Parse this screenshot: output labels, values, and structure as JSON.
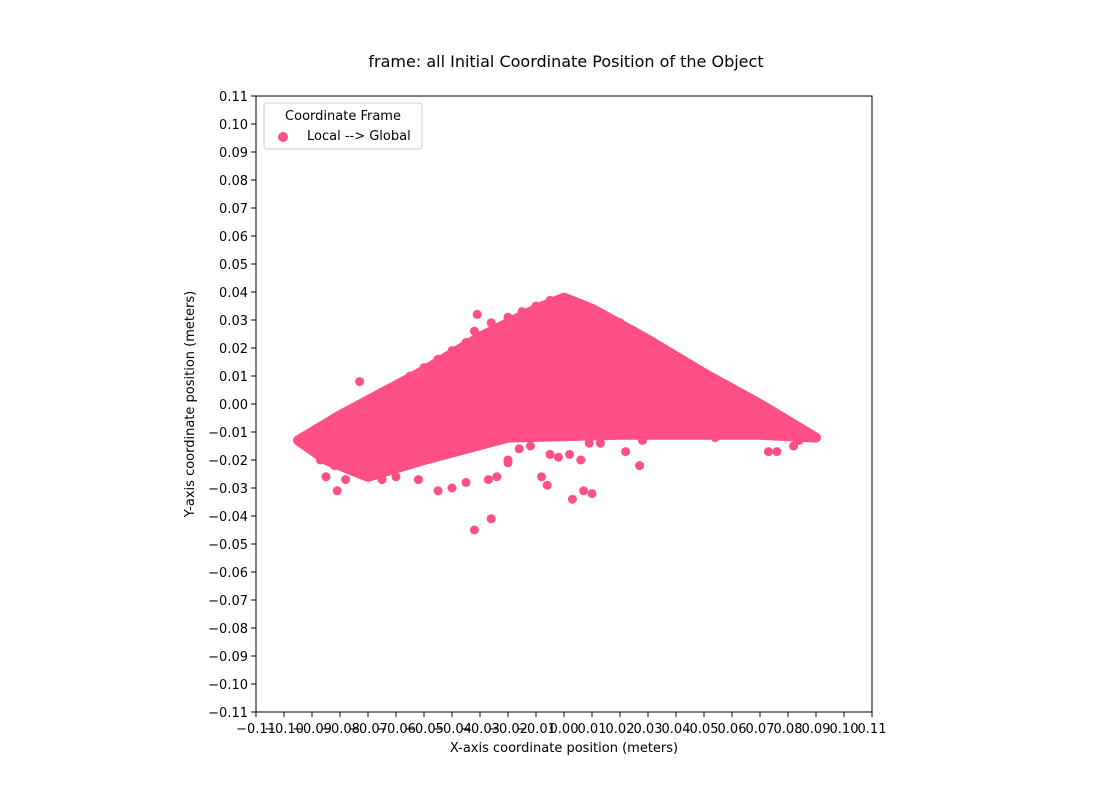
{
  "chart_data": {
    "type": "scatter",
    "title": "frame: all Initial Coordinate Position of the Object",
    "xlabel": "X-axis coordinate position (meters)",
    "ylabel": "Y-axis coordinate position (meters)",
    "xlim": [
      -0.11,
      0.11
    ],
    "ylim": [
      -0.11,
      0.11
    ],
    "xticks": [
      -0.11,
      -0.1,
      -0.09,
      -0.08,
      -0.07,
      -0.06,
      -0.05,
      -0.04,
      -0.03,
      -0.02,
      -0.01,
      0.0,
      0.01,
      0.02,
      0.03,
      0.04,
      0.05,
      0.06,
      0.07,
      0.08,
      0.09,
      0.1,
      0.11
    ],
    "yticks": [
      -0.11,
      -0.1,
      -0.09,
      -0.08,
      -0.07,
      -0.06,
      -0.05,
      -0.04,
      -0.03,
      -0.02,
      -0.01,
      0.0,
      0.01,
      0.02,
      0.03,
      0.04,
      0.05,
      0.06,
      0.07,
      0.08,
      0.09,
      0.1,
      0.11
    ],
    "xtick_labels": [
      "−0.11",
      "−0.10",
      "−0.09",
      "−0.08",
      "−0.07",
      "−0.06",
      "−0.05",
      "−0.04",
      "−0.03",
      "−0.02",
      "−0.01",
      "0.00",
      "0.01",
      "0.02",
      "0.03",
      "0.04",
      "0.05",
      "0.06",
      "0.07",
      "0.08",
      "0.09",
      "0.10",
      "0.11"
    ],
    "ytick_labels": [
      "−0.11",
      "−0.10",
      "−0.09",
      "−0.08",
      "−0.07",
      "−0.06",
      "−0.05",
      "−0.04",
      "−0.03",
      "−0.02",
      "−0.01",
      "0.00",
      "0.01",
      "0.02",
      "0.03",
      "0.04",
      "0.05",
      "0.06",
      "0.07",
      "0.08",
      "0.09",
      "0.10",
      "0.11"
    ],
    "grid": false,
    "legend": {
      "title": "Coordinate Frame",
      "placement": "upper-left"
    },
    "series": [
      {
        "name": "Local --> Global",
        "color": "#ff4f87",
        "dense_region": {
          "description_shape": "triangular cloud",
          "apex": [
            0.0,
            0.038
          ],
          "left_base": [
            -0.095,
            -0.013
          ],
          "right_base": [
            0.09,
            -0.012
          ],
          "base_y": -0.01
        },
        "x": [
          -0.095,
          -0.09,
          -0.085,
          -0.08,
          -0.075,
          -0.07,
          -0.065,
          -0.06,
          -0.055,
          -0.05,
          -0.045,
          -0.04,
          -0.035,
          -0.03,
          -0.032,
          -0.026,
          -0.02,
          -0.015,
          -0.01,
          -0.005,
          0.0,
          0.005,
          0.01,
          0.015,
          0.02,
          0.025,
          0.03,
          0.035,
          0.04,
          0.045,
          0.05,
          0.055,
          0.06,
          0.065,
          0.07,
          0.075,
          0.08,
          0.085,
          0.09,
          -0.073,
          -0.031,
          -0.032,
          -0.026,
          -0.008,
          -0.006,
          0.003,
          0.007,
          0.01,
          0.022,
          0.027,
          0.073,
          0.076,
          0.082,
          0.084,
          0.088,
          -0.078,
          -0.081,
          -0.085,
          -0.087,
          -0.082,
          -0.07,
          -0.065,
          -0.06,
          -0.052,
          -0.045,
          -0.04,
          -0.035,
          -0.027,
          -0.024,
          -0.02,
          -0.02,
          -0.016,
          -0.012,
          -0.005,
          -0.002,
          0.002,
          0.006,
          0.009,
          0.013,
          0.028,
          0.054
        ],
        "y": [
          -0.013,
          -0.012,
          -0.009,
          -0.006,
          -0.003,
          0.0,
          0.003,
          0.006,
          0.01,
          0.013,
          0.016,
          0.019,
          0.022,
          0.024,
          0.026,
          0.029,
          0.031,
          0.033,
          0.035,
          0.037,
          0.038,
          0.036,
          0.034,
          0.031,
          0.029,
          0.026,
          0.023,
          0.02,
          0.017,
          0.014,
          0.011,
          0.008,
          0.005,
          0.002,
          -0.001,
          -0.004,
          -0.006,
          -0.009,
          -0.012,
          0.008,
          0.032,
          -0.045,
          -0.041,
          -0.026,
          -0.029,
          -0.034,
          -0.031,
          -0.032,
          -0.017,
          -0.022,
          -0.017,
          -0.017,
          -0.015,
          -0.013,
          -0.012,
          -0.027,
          -0.031,
          -0.026,
          -0.02,
          -0.022,
          -0.022,
          -0.027,
          -0.026,
          -0.027,
          -0.031,
          -0.03,
          -0.028,
          -0.027,
          -0.026,
          -0.02,
          -0.021,
          -0.016,
          -0.015,
          -0.018,
          -0.019,
          -0.018,
          -0.02,
          -0.014,
          -0.014,
          -0.013,
          -0.012
        ]
      }
    ]
  }
}
